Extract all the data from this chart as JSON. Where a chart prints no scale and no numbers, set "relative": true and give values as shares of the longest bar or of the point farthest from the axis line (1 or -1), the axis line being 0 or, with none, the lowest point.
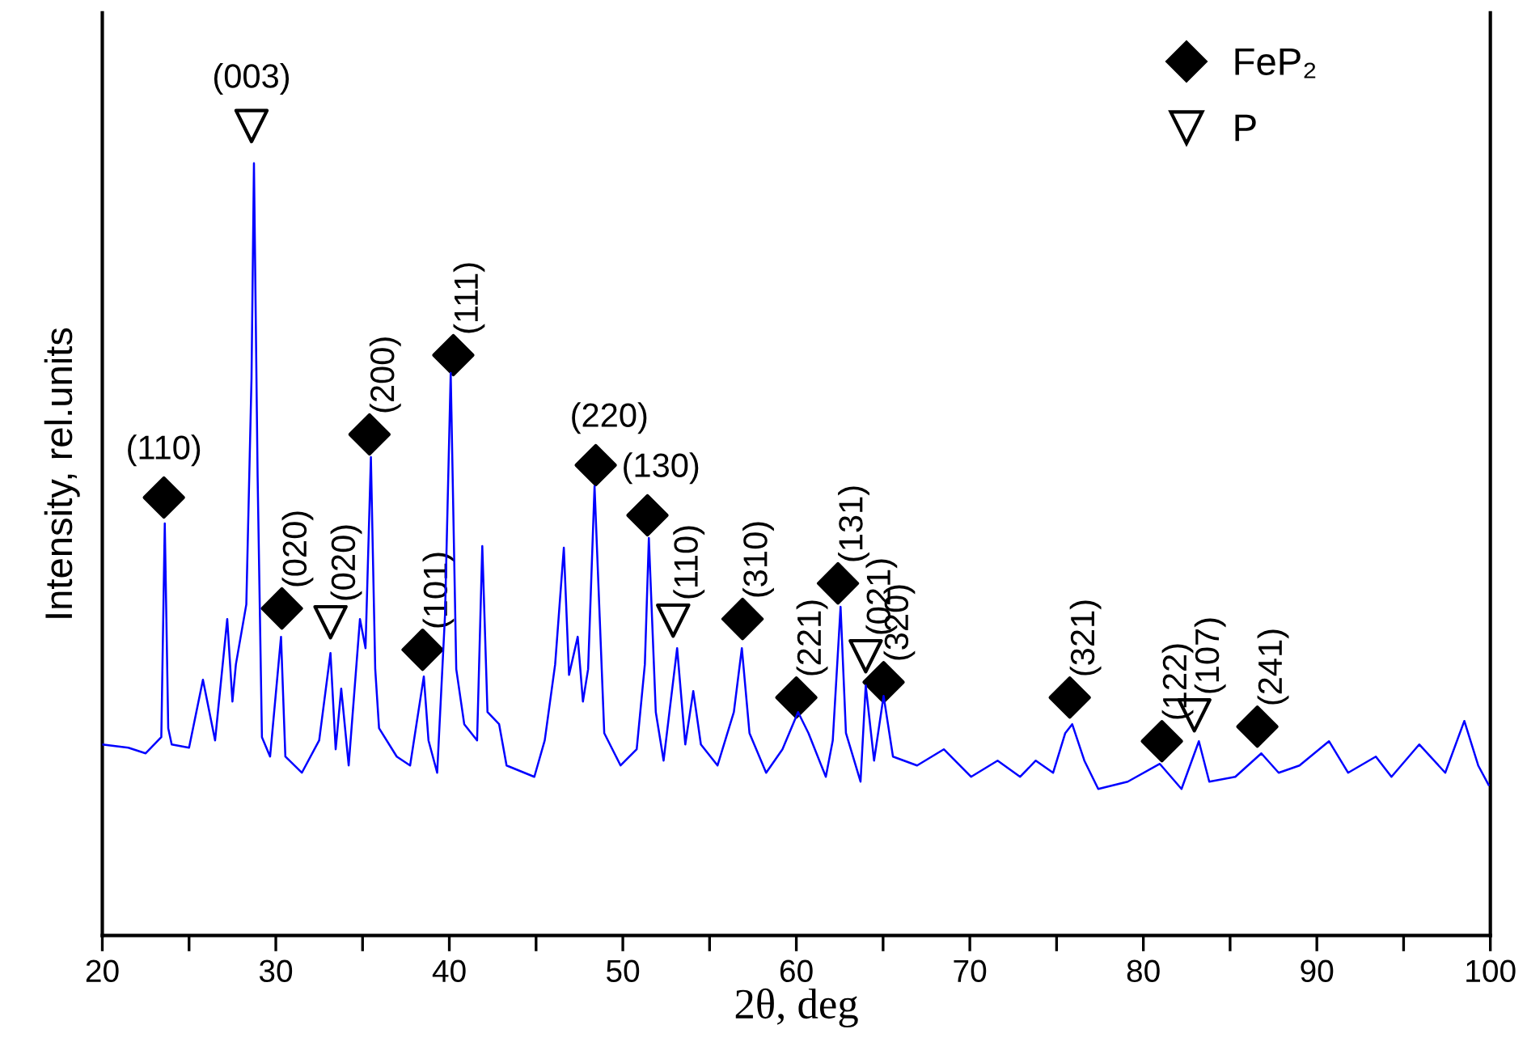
{
  "chart_data": {
    "type": "line",
    "relative": true,
    "xlabel": "2θ, deg",
    "ylabel": "Intensity, rel.units",
    "xlim": [
      20,
      100
    ],
    "xticks": [
      20,
      {
        "value": 25,
        "label": null
      },
      30,
      {
        "value": 35,
        "label": null
      },
      40,
      {
        "value": 45,
        "label": null
      },
      50,
      {
        "value": 55,
        "label": null
      },
      60,
      {
        "value": 65,
        "label": null
      },
      70,
      {
        "value": 75,
        "label": null
      },
      80,
      {
        "value": 85,
        "label": null
      },
      90,
      {
        "value": 95,
        "label": null
      },
      100
    ],
    "legend": "top right",
    "series": [
      {
        "color": "#0000ff",
        "line_style": "solid",
        "x": [
          20,
          21.5,
          22.5,
          23.4,
          23.6,
          23.8,
          24.0,
          25.0,
          25.8,
          26.5,
          27.2,
          27.5,
          27.7,
          28.3,
          28.6,
          28.74,
          28.95,
          29.2,
          29.67,
          30.3,
          30.55,
          31.5,
          32.5,
          33.15,
          33.45,
          33.77,
          34.2,
          34.85,
          35.17,
          35.48,
          35.73,
          35.95,
          36.97,
          37.74,
          38.53,
          38.8,
          39.3,
          39.75,
          40.08,
          40.4,
          40.86,
          41.6,
          41.9,
          42.2,
          42.87,
          43.3,
          44.9,
          45.5,
          46.1,
          46.6,
          46.9,
          47.4,
          47.7,
          48.0,
          48.37,
          48.93,
          49.87,
          50.8,
          51.27,
          51.5,
          51.9,
          52.35,
          53.13,
          53.6,
          54.06,
          54.5,
          55.46,
          56.4,
          56.86,
          57.3,
          58.26,
          59.2,
          60.1,
          60.7,
          61.7,
          62.1,
          62.55,
          62.86,
          63.7,
          64.0,
          64.48,
          65.03,
          65.57,
          66.96,
          68.5,
          70.07,
          71.6,
          72.9,
          73.8,
          74.8,
          75.5,
          75.9,
          76.6,
          77.4,
          79.1,
          80.95,
          82.2,
          83.2,
          83.8,
          85.3,
          86.8,
          87.8,
          89.0,
          90.7,
          91.8,
          93.4,
          94.3,
          95.9,
          97.4,
          98.5,
          99.3,
          99.9
        ],
        "values": [
          0.236,
          0.232,
          0.225,
          0.245,
          0.509,
          0.256,
          0.236,
          0.232,
          0.316,
          0.241,
          0.391,
          0.289,
          0.335,
          0.409,
          0.689,
          0.954,
          0.569,
          0.245,
          0.221,
          0.369,
          0.221,
          0.201,
          0.241,
          0.349,
          0.23,
          0.305,
          0.21,
          0.391,
          0.355,
          0.591,
          0.329,
          0.256,
          0.221,
          0.21,
          0.32,
          0.241,
          0.201,
          0.395,
          0.695,
          0.329,
          0.261,
          0.241,
          0.481,
          0.276,
          0.261,
          0.21,
          0.196,
          0.241,
          0.335,
          0.479,
          0.322,
          0.369,
          0.289,
          0.329,
          0.555,
          0.25,
          0.21,
          0.23,
          0.335,
          0.491,
          0.276,
          0.216,
          0.355,
          0.236,
          0.302,
          0.236,
          0.21,
          0.276,
          0.355,
          0.25,
          0.201,
          0.23,
          0.276,
          0.25,
          0.196,
          0.241,
          0.406,
          0.25,
          0.19,
          0.309,
          0.216,
          0.296,
          0.221,
          0.21,
          0.23,
          0.196,
          0.216,
          0.196,
          0.216,
          0.201,
          0.25,
          0.261,
          0.216,
          0.181,
          0.19,
          0.212,
          0.181,
          0.24,
          0.19,
          0.196,
          0.225,
          0.201,
          0.21,
          0.24,
          0.201,
          0.221,
          0.196,
          0.236,
          0.201,
          0.265,
          0.21,
          0.186
        ]
      },
      {
        "type": "scatter",
        "name": "FeP₂",
        "color": "#000000",
        "marker": "diamond",
        "x": [
          23.55,
          30.35,
          35.4,
          38.46,
          40.23,
          48.44,
          51.42,
          56.9,
          60.0,
          62.4,
          65.03,
          75.76,
          81.07,
          86.57
        ],
        "values": [
          0.541,
          0.404,
          0.619,
          0.353,
          0.717,
          0.581,
          0.519,
          0.391,
          0.294,
          0.435,
          0.313,
          0.294,
          0.24,
          0.258
        ]
      },
      {
        "type": "scatter",
        "name": "P",
        "color": "#000000",
        "marker": "triangle",
        "x": [
          28.6,
          33.15,
          52.9,
          64.0,
          82.94
        ],
        "values": [
          1.0,
          0.387,
          0.389,
          0.345,
          0.272
        ]
      }
    ],
    "annotations": [
      {
        "text": "(110)",
        "x": 23.55,
        "y": 0.541
      },
      {
        "text": "(003)",
        "x": 28.6,
        "y": 1.0
      },
      {
        "text": "(220)",
        "x": 48.44,
        "y": 0.581
      },
      {
        "text": "(130)",
        "x": 51.42,
        "y": 0.519
      },
      {
        "text": "(020)",
        "x": 30.35,
        "y": 0.404
      },
      {
        "text": "(020)",
        "x": 33.15,
        "y": 0.387
      },
      {
        "text": "(200)",
        "x": 35.4,
        "y": 0.619
      },
      {
        "text": "(101)",
        "x": 38.46,
        "y": 0.353
      },
      {
        "text": "(111)",
        "x": 40.23,
        "y": 0.717
      },
      {
        "text": "(110)",
        "x": 52.9,
        "y": 0.389
      },
      {
        "text": "(310)",
        "x": 56.9,
        "y": 0.391
      },
      {
        "text": "(221)",
        "x": 60.0,
        "y": 0.294
      },
      {
        "text": "(131)",
        "x": 62.4,
        "y": 0.435
      },
      {
        "text": "(021)",
        "x": 64.0,
        "y": 0.345
      },
      {
        "text": "(320)",
        "x": 65.03,
        "y": 0.313
      },
      {
        "text": "(321)",
        "x": 75.76,
        "y": 0.294
      },
      {
        "text": "(122)",
        "x": 81.07,
        "y": 0.24
      },
      {
        "text": "(107)",
        "x": 82.94,
        "y": 0.272
      },
      {
        "text": "(241)",
        "x": 86.57,
        "y": 0.258
      }
    ]
  }
}
